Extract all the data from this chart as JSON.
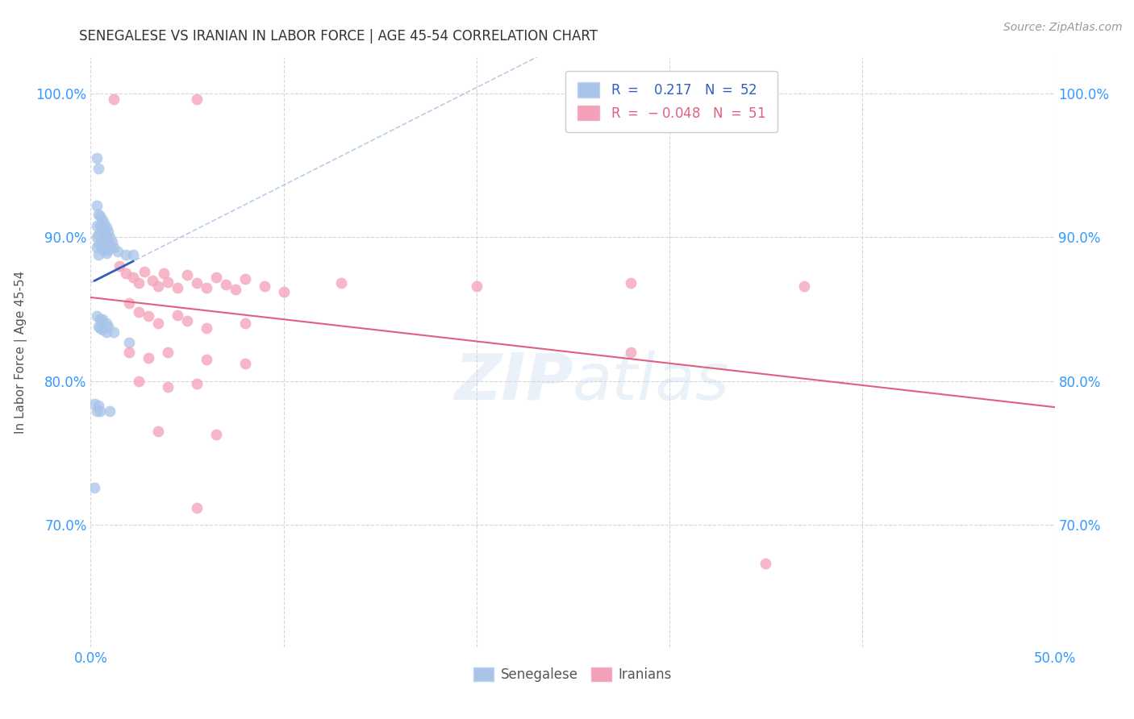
{
  "title": "SENEGALESE VS IRANIAN IN LABOR FORCE | AGE 45-54 CORRELATION CHART",
  "source": "Source: ZipAtlas.com",
  "ylabel": "In Labor Force | Age 45-54",
  "xlim": [
    0.0,
    0.5
  ],
  "ylim": [
    0.615,
    1.025
  ],
  "xticks": [
    0.0,
    0.1,
    0.2,
    0.3,
    0.4,
    0.5
  ],
  "xticklabels": [
    "0.0%",
    "",
    "",
    "",
    "",
    "50.0%"
  ],
  "yticks": [
    0.7,
    0.8,
    0.9,
    1.0
  ],
  "yticklabels": [
    "70.0%",
    "80.0%",
    "90.0%",
    "100.0%"
  ],
  "blue_color": "#a8c4e8",
  "pink_color": "#f4a0b8",
  "blue_line_color": "#3060bb",
  "pink_line_color": "#e06080",
  "blue_dashed_color": "#9ab8e0",
  "background_color": "#ffffff",
  "grid_color": "#cccccc",
  "title_color": "#333333",
  "axis_label_color": "#555555",
  "tick_color": "#3399ff",
  "watermark": "ZIPatlas",
  "blue_scatter": [
    [
      0.003,
      0.955
    ],
    [
      0.004,
      0.948
    ],
    [
      0.003,
      0.922
    ],
    [
      0.004,
      0.916
    ],
    [
      0.003,
      0.908
    ],
    [
      0.004,
      0.902
    ],
    [
      0.003,
      0.9
    ],
    [
      0.004,
      0.895
    ],
    [
      0.003,
      0.893
    ],
    [
      0.004,
      0.888
    ],
    [
      0.005,
      0.915
    ],
    [
      0.005,
      0.908
    ],
    [
      0.006,
      0.912
    ],
    [
      0.006,
      0.905
    ],
    [
      0.006,
      0.898
    ],
    [
      0.006,
      0.892
    ],
    [
      0.007,
      0.91
    ],
    [
      0.007,
      0.904
    ],
    [
      0.007,
      0.897
    ],
    [
      0.007,
      0.891
    ],
    [
      0.008,
      0.907
    ],
    [
      0.008,
      0.901
    ],
    [
      0.008,
      0.895
    ],
    [
      0.008,
      0.889
    ],
    [
      0.009,
      0.904
    ],
    [
      0.009,
      0.897
    ],
    [
      0.009,
      0.891
    ],
    [
      0.01,
      0.9
    ],
    [
      0.01,
      0.893
    ],
    [
      0.011,
      0.897
    ],
    [
      0.012,
      0.893
    ],
    [
      0.014,
      0.89
    ],
    [
      0.018,
      0.888
    ],
    [
      0.003,
      0.845
    ],
    [
      0.004,
      0.838
    ],
    [
      0.005,
      0.843
    ],
    [
      0.005,
      0.837
    ],
    [
      0.006,
      0.843
    ],
    [
      0.006,
      0.836
    ],
    [
      0.008,
      0.84
    ],
    [
      0.008,
      0.834
    ],
    [
      0.009,
      0.838
    ],
    [
      0.012,
      0.834
    ],
    [
      0.02,
      0.827
    ],
    [
      0.002,
      0.784
    ],
    [
      0.003,
      0.779
    ],
    [
      0.004,
      0.783
    ],
    [
      0.005,
      0.779
    ],
    [
      0.01,
      0.779
    ],
    [
      0.002,
      0.726
    ],
    [
      0.022,
      0.888
    ]
  ],
  "pink_scatter": [
    [
      0.012,
      0.996
    ],
    [
      0.055,
      0.996
    ],
    [
      0.015,
      0.88
    ],
    [
      0.018,
      0.875
    ],
    [
      0.022,
      0.872
    ],
    [
      0.025,
      0.868
    ],
    [
      0.028,
      0.876
    ],
    [
      0.032,
      0.87
    ],
    [
      0.035,
      0.866
    ],
    [
      0.038,
      0.875
    ],
    [
      0.04,
      0.869
    ],
    [
      0.045,
      0.865
    ],
    [
      0.05,
      0.874
    ],
    [
      0.055,
      0.868
    ],
    [
      0.06,
      0.865
    ],
    [
      0.065,
      0.872
    ],
    [
      0.07,
      0.867
    ],
    [
      0.075,
      0.864
    ],
    [
      0.08,
      0.871
    ],
    [
      0.09,
      0.866
    ],
    [
      0.1,
      0.862
    ],
    [
      0.13,
      0.868
    ],
    [
      0.2,
      0.866
    ],
    [
      0.28,
      0.868
    ],
    [
      0.02,
      0.854
    ],
    [
      0.025,
      0.848
    ],
    [
      0.03,
      0.845
    ],
    [
      0.035,
      0.84
    ],
    [
      0.045,
      0.846
    ],
    [
      0.05,
      0.842
    ],
    [
      0.06,
      0.837
    ],
    [
      0.08,
      0.84
    ],
    [
      0.02,
      0.82
    ],
    [
      0.03,
      0.816
    ],
    [
      0.04,
      0.82
    ],
    [
      0.06,
      0.815
    ],
    [
      0.08,
      0.812
    ],
    [
      0.025,
      0.8
    ],
    [
      0.04,
      0.796
    ],
    [
      0.055,
      0.798
    ],
    [
      0.035,
      0.765
    ],
    [
      0.065,
      0.763
    ],
    [
      0.055,
      0.712
    ],
    [
      0.35,
      0.673
    ],
    [
      0.37,
      0.866
    ],
    [
      0.28,
      0.82
    ]
  ]
}
